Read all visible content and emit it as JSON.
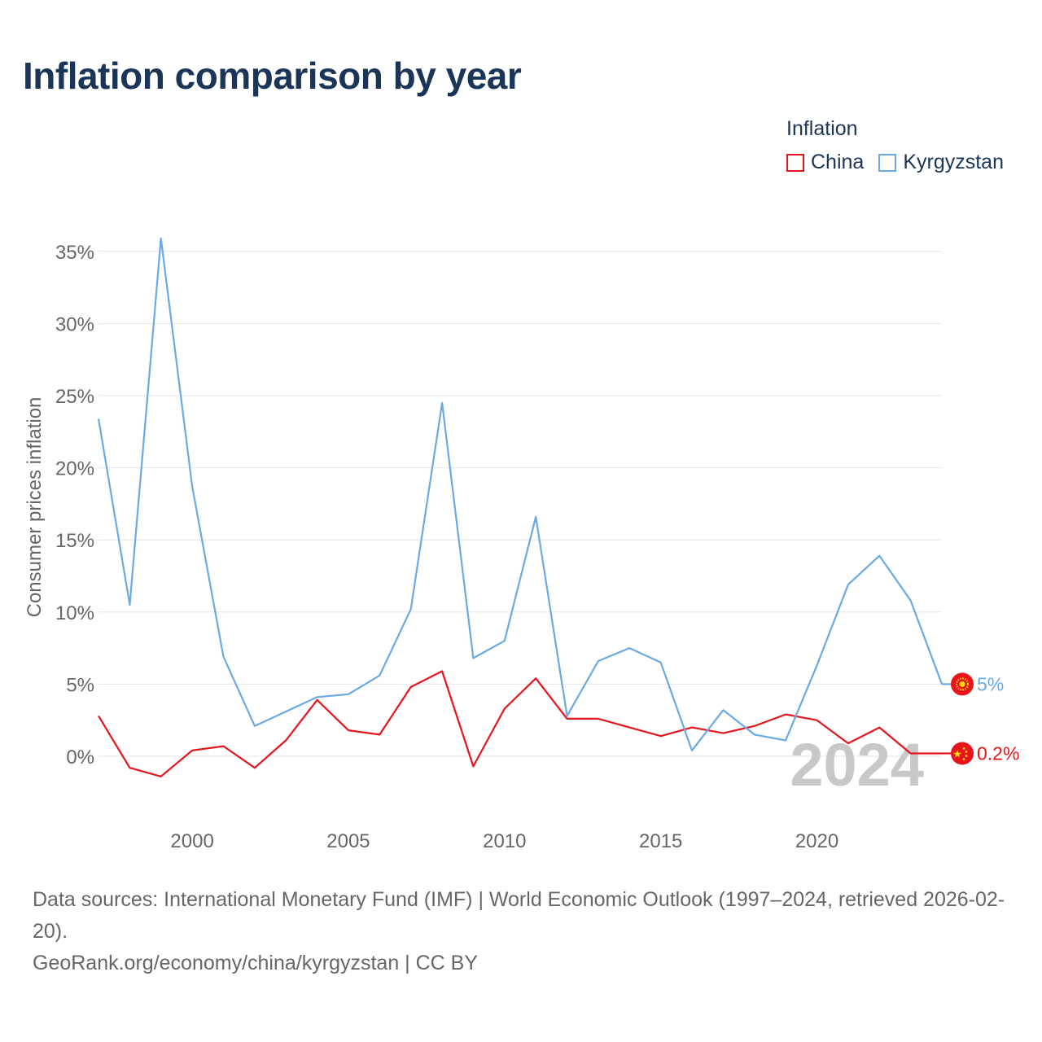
{
  "chart_data": {
    "type": "line",
    "title": "Inflation comparison by year",
    "ylabel": "Consumer prices inflation",
    "xlabel": "",
    "x": [
      1997,
      1998,
      1999,
      2000,
      2001,
      2002,
      2003,
      2004,
      2005,
      2006,
      2007,
      2008,
      2009,
      2010,
      2011,
      2012,
      2013,
      2014,
      2015,
      2016,
      2017,
      2018,
      2019,
      2020,
      2021,
      2022,
      2023,
      2024
    ],
    "xlim": [
      1997,
      2024
    ],
    "ylim": [
      -4,
      37
    ],
    "xticks": [
      2000,
      2005,
      2010,
      2015,
      2020
    ],
    "yticks": [
      0,
      5,
      10,
      15,
      20,
      25,
      30,
      35
    ],
    "ytick_labels": [
      "0%",
      "5%",
      "10%",
      "15%",
      "20%",
      "25%",
      "30%",
      "35%"
    ],
    "legend_title": "Inflation",
    "legend_position": "top-right",
    "current_year_label": "2024",
    "series": [
      {
        "name": "China",
        "color": "#e8141c",
        "values": [
          2.8,
          -0.8,
          -1.4,
          0.4,
          0.7,
          -0.8,
          1.1,
          3.9,
          1.8,
          1.5,
          4.8,
          5.9,
          -0.7,
          3.3,
          5.4,
          2.6,
          2.6,
          2.0,
          1.4,
          2.0,
          1.6,
          2.1,
          2.9,
          2.5,
          0.9,
          2.0,
          0.2,
          0.2
        ],
        "end_label": "0.2%",
        "flag_icon": "china-flag-icon"
      },
      {
        "name": "Kyrgyzstan",
        "color": "#6aaae4",
        "values": [
          23.4,
          10.5,
          35.9,
          18.7,
          6.9,
          2.1,
          3.1,
          4.1,
          4.3,
          5.6,
          10.2,
          24.5,
          6.8,
          8.0,
          16.6,
          2.8,
          6.6,
          7.5,
          6.5,
          0.4,
          3.2,
          1.5,
          1.1,
          6.3,
          11.9,
          13.9,
          10.8,
          5.0
        ],
        "end_label": "5%",
        "flag_icon": "kyrgyzstan-flag-icon"
      }
    ]
  },
  "footer": {
    "sources": "Data sources: International Monetary Fund (IMF) | World Economic Outlook (1997–2024, retrieved 2026-02-20).",
    "credit": "GeoRank.org/economy/china/kyrgyzstan | CC BY"
  }
}
